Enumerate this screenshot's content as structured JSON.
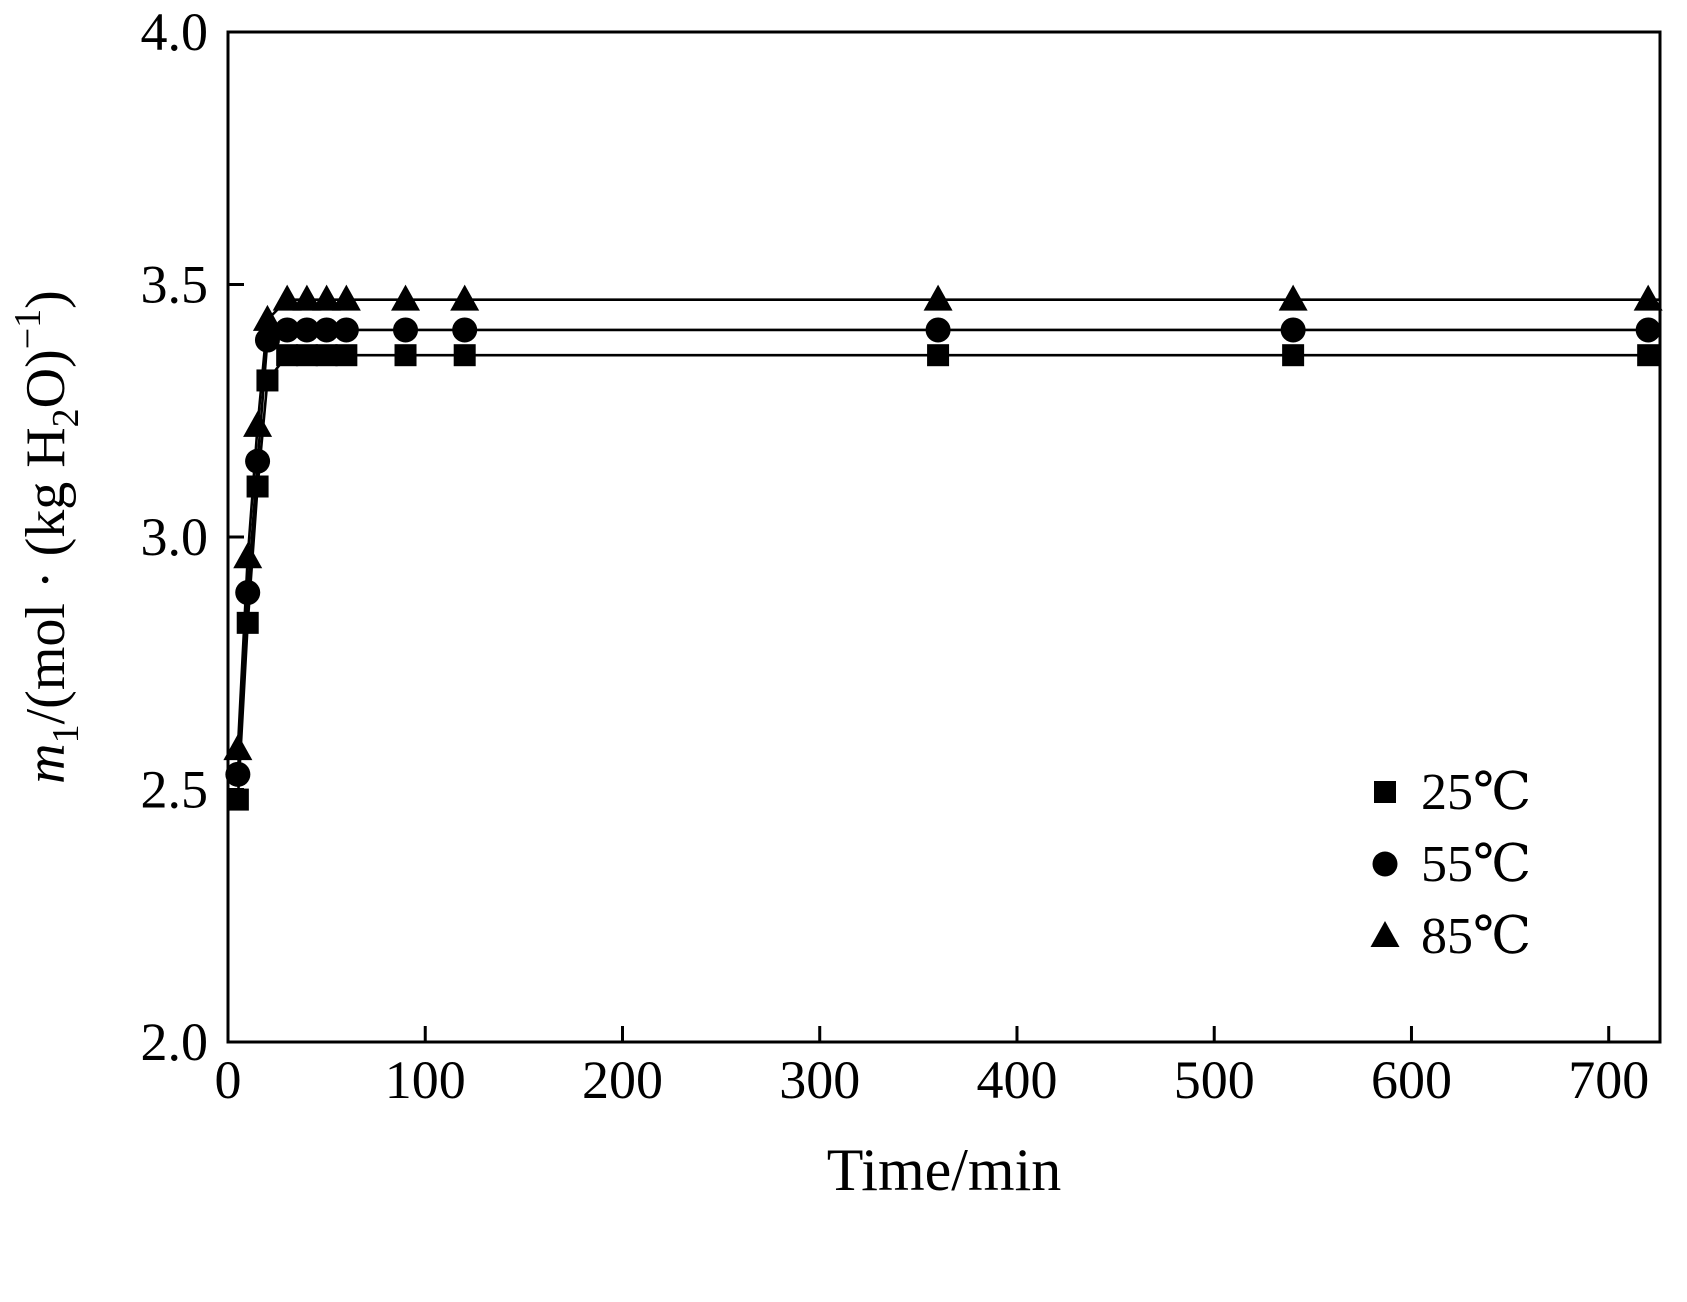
{
  "figure": {
    "background": "#ffffff",
    "axis_color": "#000000",
    "marker_color": "#000000",
    "line_color": "#000000"
  },
  "chart_data": {
    "type": "scatter",
    "title": "",
    "xlabel": "Time/min",
    "ylabel": "m1/(mol · (kg H2O)−1)",
    "ylabel_parts": [
      {
        "t": "m",
        "s": "i"
      },
      {
        "t": "1",
        "s": "sub"
      },
      {
        "t": "/(mol · (kg H",
        "s": "n"
      },
      {
        "t": "2",
        "s": "sub"
      },
      {
        "t": "O)",
        "s": "n"
      },
      {
        "t": "−1",
        "s": "sup"
      },
      {
        "t": ")",
        "s": "n"
      }
    ],
    "xlim": [
      0,
      726
    ],
    "ylim": [
      2.0,
      4.0
    ],
    "grid": false,
    "xticks": {
      "values": [
        0,
        100,
        200,
        300,
        400,
        500,
        600,
        700
      ],
      "labels": [
        "0",
        "100",
        "200",
        "300",
        "400",
        "500",
        "600",
        "700"
      ]
    },
    "yticks": {
      "values": [
        2.0,
        2.5,
        3.0,
        3.5,
        4.0
      ],
      "labels": [
        "2.0",
        "2.5",
        "3.0",
        "3.5",
        "4.0"
      ]
    },
    "x": [
      5,
      10,
      15,
      20,
      30,
      40,
      50,
      60,
      90,
      120,
      360,
      540,
      720
    ],
    "series": [
      {
        "name": "25℃",
        "marker": "square",
        "plateau": 3.36,
        "values": [
          2.48,
          2.83,
          3.1,
          3.31,
          3.36,
          3.36,
          3.36,
          3.36,
          3.36,
          3.36,
          3.36,
          3.36,
          3.36
        ]
      },
      {
        "name": "55℃",
        "marker": "circle",
        "plateau": 3.41,
        "values": [
          2.53,
          2.89,
          3.15,
          3.39,
          3.41,
          3.41,
          3.41,
          3.41,
          3.41,
          3.41,
          3.41,
          3.41,
          3.41
        ]
      },
      {
        "name": "85℃",
        "marker": "triangle",
        "plateau": 3.47,
        "values": [
          2.58,
          2.96,
          3.22,
          3.43,
          3.47,
          3.47,
          3.47,
          3.47,
          3.47,
          3.47,
          3.47,
          3.47,
          3.47
        ]
      }
    ],
    "line_extend_to_xmax": true,
    "legend": {
      "position": "lower right",
      "entries": [
        {
          "marker": "square",
          "label": "25℃"
        },
        {
          "marker": "circle",
          "label": "55℃"
        },
        {
          "marker": "triangle",
          "label": "85℃"
        }
      ]
    }
  }
}
